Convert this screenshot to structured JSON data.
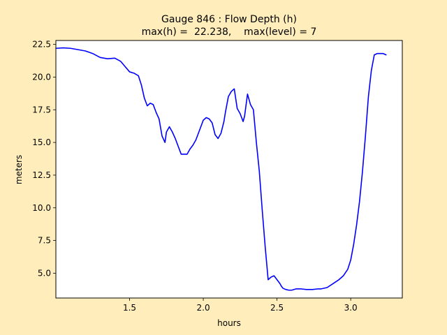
{
  "chart_data": {
    "type": "line",
    "title_lines": [
      "Gauge 846 : Flow Depth (h)",
      "max(h) =  22.238,    max(level) = 7"
    ],
    "xlabel": "hours",
    "ylabel": "meters",
    "xlim": [
      1.0,
      3.35
    ],
    "ylim": [
      3.1,
      22.8
    ],
    "xticks": [
      1.5,
      2.0,
      2.5,
      3.0
    ],
    "xtick_labels": [
      "1.5",
      "2.0",
      "2.5",
      "3.0"
    ],
    "yticks": [
      5.0,
      7.5,
      10.0,
      12.5,
      15.0,
      17.5,
      20.0,
      22.5
    ],
    "ytick_labels": [
      "5.0",
      "7.5",
      "10.0",
      "12.5",
      "15.0",
      "17.5",
      "20.0",
      "22.5"
    ],
    "grid": false,
    "background_color": "#ffeebb",
    "axes_color": "#ffffff",
    "series": [
      {
        "color": "#0000ff",
        "x": [
          1.0,
          1.05,
          1.1,
          1.15,
          1.2,
          1.25,
          1.3,
          1.35,
          1.4,
          1.44,
          1.47,
          1.5,
          1.53,
          1.56,
          1.58,
          1.6,
          1.62,
          1.64,
          1.66,
          1.68,
          1.7,
          1.72,
          1.74,
          1.75,
          1.77,
          1.79,
          1.81,
          1.83,
          1.85,
          1.87,
          1.89,
          1.91,
          1.93,
          1.95,
          1.97,
          2.0,
          2.02,
          2.04,
          2.06,
          2.08,
          2.1,
          2.12,
          2.14,
          2.15,
          2.17,
          2.19,
          2.21,
          2.23,
          2.25,
          2.27,
          2.28,
          2.3,
          2.32,
          2.34,
          2.36,
          2.38,
          2.4,
          2.42,
          2.44,
          2.46,
          2.48,
          2.5,
          2.52,
          2.53,
          2.54,
          2.56,
          2.58,
          2.6,
          2.63,
          2.66,
          2.7,
          2.74,
          2.78,
          2.8,
          2.84,
          2.88,
          2.92,
          2.95,
          2.98,
          3.0,
          3.02,
          3.04,
          3.06,
          3.08,
          3.1,
          3.12,
          3.14,
          3.16,
          3.18,
          3.2,
          3.22,
          3.24
        ],
        "y": [
          22.2,
          22.238,
          22.2,
          22.1,
          22.0,
          21.8,
          21.5,
          21.4,
          21.45,
          21.2,
          20.8,
          20.4,
          20.3,
          20.1,
          19.4,
          18.4,
          17.8,
          18.0,
          17.9,
          17.3,
          16.8,
          15.5,
          15.0,
          15.8,
          16.2,
          15.8,
          15.3,
          14.7,
          14.1,
          14.1,
          14.1,
          14.5,
          14.8,
          15.2,
          15.8,
          16.7,
          16.9,
          16.8,
          16.5,
          15.6,
          15.3,
          15.7,
          16.6,
          17.3,
          18.5,
          18.9,
          19.1,
          17.6,
          17.2,
          16.6,
          17.0,
          18.7,
          17.9,
          17.5,
          15.0,
          12.8,
          9.8,
          7.0,
          4.5,
          4.7,
          4.8,
          4.5,
          4.2,
          4.0,
          3.85,
          3.75,
          3.7,
          3.7,
          3.8,
          3.8,
          3.75,
          3.75,
          3.8,
          3.8,
          3.9,
          4.2,
          4.5,
          4.8,
          5.3,
          6.0,
          7.2,
          8.7,
          10.5,
          12.8,
          15.5,
          18.5,
          20.5,
          21.7,
          21.8,
          21.8,
          21.8,
          21.7
        ]
      }
    ]
  }
}
